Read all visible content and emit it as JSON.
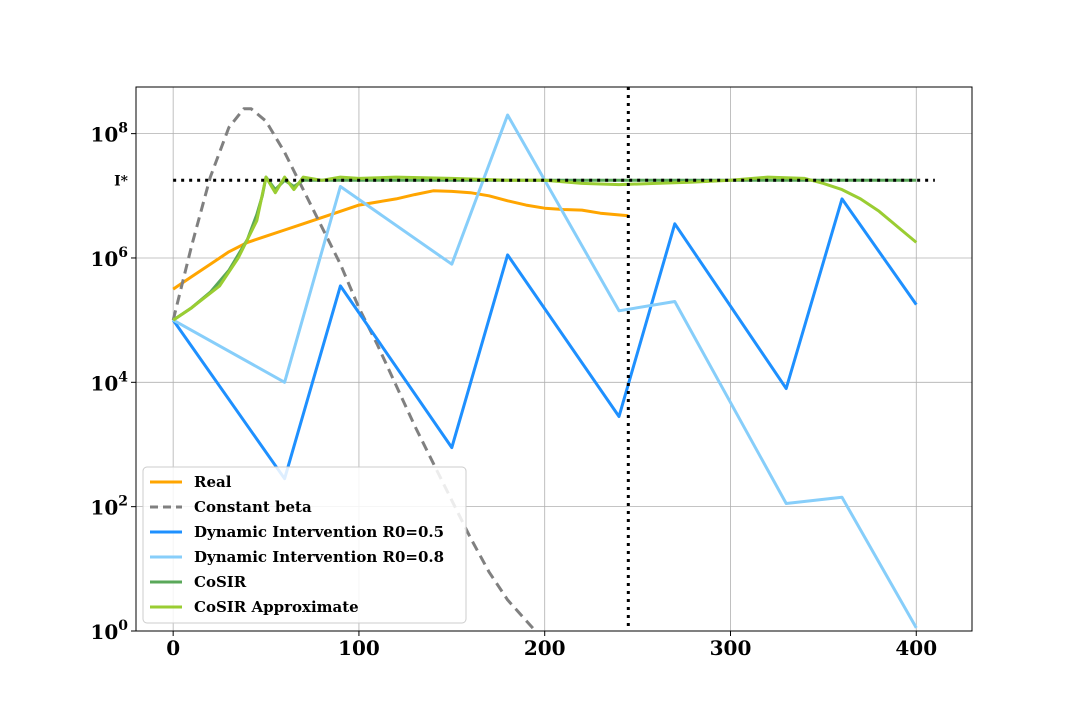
{
  "chart_data": {
    "type": "line",
    "title": "",
    "xlabel": "",
    "ylabel": "",
    "xlim": [
      -20,
      430
    ],
    "ylim_log10": [
      0,
      8.75
    ],
    "y_scale": "log",
    "grid": true,
    "legend_position": "lower-left",
    "x_ticks": [
      0,
      100,
      200,
      300,
      400
    ],
    "x_tick_labels": [
      "0",
      "100",
      "200",
      "300",
      "400"
    ],
    "y_ticks_exponent": [
      0,
      2,
      4,
      6,
      8
    ],
    "y_tick_base": "10",
    "y_tick_exponents": [
      "0",
      "2",
      "4",
      "6",
      "8"
    ],
    "annotation": {
      "label": "I*",
      "log10_value": 7.25,
      "x_start": 0,
      "x_end": 410,
      "style": "dotted",
      "color": "#000000"
    },
    "vline": {
      "x": 245,
      "style": "dotted",
      "color": "#000000"
    },
    "series": [
      {
        "name": "Real",
        "color": "#ffa500",
        "style": "solid",
        "points": [
          [
            0,
            5.5
          ],
          [
            10,
            5.7
          ],
          [
            20,
            5.9
          ],
          [
            30,
            6.1
          ],
          [
            40,
            6.25
          ],
          [
            50,
            6.35
          ],
          [
            60,
            6.45
          ],
          [
            70,
            6.55
          ],
          [
            80,
            6.65
          ],
          [
            90,
            6.75
          ],
          [
            100,
            6.85
          ],
          [
            110,
            6.9
          ],
          [
            120,
            6.95
          ],
          [
            130,
            7.02
          ],
          [
            140,
            7.08
          ],
          [
            150,
            7.07
          ],
          [
            160,
            7.05
          ],
          [
            170,
            7.0
          ],
          [
            180,
            6.92
          ],
          [
            190,
            6.85
          ],
          [
            200,
            6.8
          ],
          [
            210,
            6.78
          ],
          [
            220,
            6.77
          ],
          [
            230,
            6.72
          ],
          [
            245,
            6.68
          ]
        ]
      },
      {
        "name": "Constant beta",
        "color": "#808080",
        "style": "dashed",
        "points": [
          [
            0,
            5.0
          ],
          [
            10,
            6.2
          ],
          [
            20,
            7.3
          ],
          [
            30,
            8.1
          ],
          [
            38,
            8.4
          ],
          [
            42,
            8.4
          ],
          [
            50,
            8.2
          ],
          [
            60,
            7.7
          ],
          [
            70,
            7.1
          ],
          [
            80,
            6.5
          ],
          [
            90,
            5.9
          ],
          [
            100,
            5.2
          ],
          [
            110,
            4.6
          ],
          [
            120,
            3.95
          ],
          [
            130,
            3.3
          ],
          [
            140,
            2.7
          ],
          [
            150,
            2.1
          ],
          [
            160,
            1.5
          ],
          [
            170,
            0.95
          ],
          [
            180,
            0.5
          ],
          [
            195,
            0.0
          ]
        ]
      },
      {
        "name": "Dynamic Intervention R0=0.5",
        "color": "#1e90ff",
        "style": "solid",
        "points": [
          [
            0,
            5.0
          ],
          [
            60,
            2.45
          ],
          [
            90,
            5.55
          ],
          [
            150,
            2.95
          ],
          [
            180,
            6.05
          ],
          [
            240,
            3.45
          ],
          [
            270,
            6.55
          ],
          [
            330,
            3.9
          ],
          [
            360,
            6.95
          ],
          [
            400,
            5.25
          ]
        ]
      },
      {
        "name": "Dynamic Intervention R0=0.8",
        "color": "#87cefa",
        "style": "solid",
        "points": [
          [
            0,
            5.0
          ],
          [
            60,
            4.0
          ],
          [
            90,
            7.15
          ],
          [
            150,
            5.9
          ],
          [
            180,
            8.3
          ],
          [
            240,
            5.15
          ],
          [
            270,
            5.3
          ],
          [
            330,
            2.05
          ],
          [
            360,
            2.15
          ],
          [
            400,
            0.05
          ]
        ]
      },
      {
        "name": "CoSIR",
        "color": "#5aa85a",
        "style": "solid",
        "points": [
          [
            0,
            5.0
          ],
          [
            10,
            5.2
          ],
          [
            20,
            5.45
          ],
          [
            30,
            5.8
          ],
          [
            40,
            6.3
          ],
          [
            45,
            6.7
          ],
          [
            48,
            7.0
          ],
          [
            50,
            7.3
          ],
          [
            55,
            7.1
          ],
          [
            60,
            7.25
          ],
          [
            65,
            7.15
          ],
          [
            70,
            7.25
          ],
          [
            80,
            7.25
          ],
          [
            100,
            7.25
          ],
          [
            150,
            7.25
          ],
          [
            200,
            7.25
          ],
          [
            250,
            7.25
          ],
          [
            300,
            7.25
          ],
          [
            350,
            7.25
          ],
          [
            400,
            7.25
          ]
        ]
      },
      {
        "name": "CoSIR Approximate",
        "color": "#9acd32",
        "style": "solid",
        "points": [
          [
            0,
            5.0
          ],
          [
            10,
            5.2
          ],
          [
            25,
            5.55
          ],
          [
            35,
            6.0
          ],
          [
            45,
            6.6
          ],
          [
            50,
            7.3
          ],
          [
            55,
            7.05
          ],
          [
            60,
            7.3
          ],
          [
            65,
            7.1
          ],
          [
            70,
            7.3
          ],
          [
            80,
            7.25
          ],
          [
            90,
            7.3
          ],
          [
            100,
            7.28
          ],
          [
            120,
            7.3
          ],
          [
            150,
            7.28
          ],
          [
            180,
            7.25
          ],
          [
            200,
            7.25
          ],
          [
            220,
            7.2
          ],
          [
            240,
            7.18
          ],
          [
            260,
            7.2
          ],
          [
            280,
            7.22
          ],
          [
            300,
            7.25
          ],
          [
            320,
            7.3
          ],
          [
            340,
            7.28
          ],
          [
            350,
            7.2
          ],
          [
            360,
            7.1
          ],
          [
            370,
            6.95
          ],
          [
            380,
            6.75
          ],
          [
            390,
            6.5
          ],
          [
            400,
            6.25
          ]
        ]
      }
    ]
  }
}
